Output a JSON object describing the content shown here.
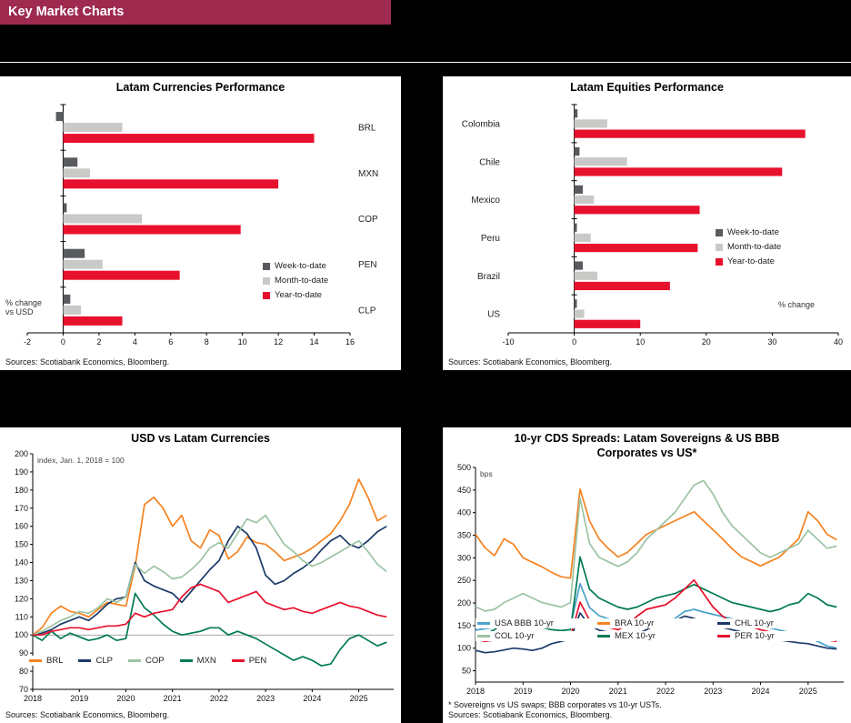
{
  "page": {
    "title": "Key Market Charts"
  },
  "colors": {
    "background": "#000000",
    "header_bg": "#9e2a4f",
    "panel_bg": "#ffffff",
    "week_to_date": "#595b5e",
    "month_to_date": "#c9cac8",
    "year_to_date": "#e8112d"
  },
  "chart_data": [
    {
      "type": "bar",
      "orientation": "horizontal",
      "title": "Latam Currencies Performance",
      "categories": [
        "BRL",
        "MXN",
        "COP",
        "PEN",
        "CLP"
      ],
      "series": [
        {
          "name": "Week-to-date",
          "color": "#595b5e",
          "values": [
            -0.4,
            0.8,
            0.2,
            1.2,
            0.4
          ]
        },
        {
          "name": "Month-to-date",
          "color": "#c9cac8",
          "values": [
            3.3,
            1.5,
            4.4,
            2.2,
            1.0
          ]
        },
        {
          "name": "Year-to-date",
          "color": "#e8112d",
          "values": [
            14.0,
            12.0,
            9.9,
            6.5,
            3.3
          ]
        }
      ],
      "xlim": [
        -2,
        16
      ],
      "xticks": [
        -2,
        0,
        2,
        4,
        6,
        8,
        10,
        12,
        14,
        16
      ],
      "axis_note": "% change\nvs USD",
      "legend_position": "inside-right",
      "sources": "Sources: Scotiabank Economics, Bloomberg."
    },
    {
      "type": "bar",
      "orientation": "horizontal",
      "title": "Latam Equities Performance",
      "categories": [
        "Colombia",
        "Chile",
        "Mexico",
        "Peru",
        "Brazil",
        "US"
      ],
      "series": [
        {
          "name": "Week-to-date",
          "color": "#595b5e",
          "values": [
            0.5,
            0.8,
            1.3,
            0.4,
            1.3,
            0.4
          ]
        },
        {
          "name": "Month-to-date",
          "color": "#c9cac8",
          "values": [
            5.0,
            8.0,
            3.0,
            2.5,
            3.5,
            1.5
          ]
        },
        {
          "name": "Year-to-date",
          "color": "#e8112d",
          "values": [
            35.0,
            31.5,
            19.0,
            18.7,
            14.5,
            10.0
          ]
        }
      ],
      "xlim": [
        -10,
        40
      ],
      "xticks": [
        -10,
        0,
        10,
        20,
        30,
        40
      ],
      "axis_note": "% change",
      "legend_position": "inside-right",
      "sources": "Sources: Scotiabank Economics, Bloomberg."
    },
    {
      "type": "line",
      "title": "USD vs Latam Currencies",
      "axis_note": "index, Jan. 1, 2018 = 100",
      "xlim": [
        2018,
        2025.75
      ],
      "ylim": [
        70,
        200
      ],
      "xticks": [
        2018,
        2019,
        2020,
        2021,
        2022,
        2023,
        2024,
        2025
      ],
      "yticks": [
        70,
        80,
        90,
        100,
        110,
        120,
        130,
        140,
        150,
        160,
        170,
        180,
        190,
        200
      ],
      "refline": 100,
      "x": [
        2018.0,
        2018.2,
        2018.4,
        2018.6,
        2018.8,
        2019.0,
        2019.2,
        2019.4,
        2019.6,
        2019.8,
        2020.0,
        2020.2,
        2020.4,
        2020.6,
        2020.8,
        2021.0,
        2021.2,
        2021.4,
        2021.6,
        2021.8,
        2022.0,
        2022.2,
        2022.4,
        2022.6,
        2022.8,
        2023.0,
        2023.2,
        2023.4,
        2023.6,
        2023.8,
        2024.0,
        2024.2,
        2024.4,
        2024.6,
        2024.8,
        2025.0,
        2025.2,
        2025.4,
        2025.6
      ],
      "series": [
        {
          "name": "BRL",
          "color": "#f58220",
          "values": [
            100,
            104,
            112,
            116,
            113,
            112,
            110,
            114,
            118,
            117,
            116,
            138,
            172,
            176,
            170,
            160,
            166,
            152,
            148,
            158,
            155,
            142,
            146,
            154,
            151,
            150,
            146,
            141,
            143,
            145,
            148,
            152,
            156,
            163,
            172,
            186,
            176,
            163,
            166
          ]
        },
        {
          "name": "CLP",
          "color": "#1b3968",
          "values": [
            100,
            101,
            103,
            106,
            108,
            110,
            108,
            112,
            117,
            120,
            121,
            140,
            130,
            127,
            125,
            123,
            118,
            124,
            130,
            136,
            141,
            152,
            160,
            156,
            148,
            133,
            128,
            130,
            134,
            137,
            141,
            147,
            152,
            155,
            150,
            148,
            152,
            157,
            160
          ]
        },
        {
          "name": "COP",
          "color": "#9cc3a3",
          "values": [
            100,
            102,
            105,
            108,
            110,
            113,
            112,
            115,
            120,
            118,
            121,
            139,
            134,
            138,
            135,
            131,
            132,
            136,
            141,
            148,
            151,
            148,
            156,
            164,
            162,
            166,
            158,
            150,
            146,
            141,
            138,
            140,
            143,
            146,
            149,
            152,
            146,
            139,
            135
          ]
        },
        {
          "name": "MXN",
          "color": "#007a53",
          "values": [
            100,
            97,
            102,
            98,
            101,
            99,
            97,
            98,
            100,
            97,
            98,
            123,
            115,
            111,
            106,
            102,
            100,
            101,
            102,
            104,
            104,
            100,
            102,
            100,
            98,
            95,
            92,
            89,
            86,
            88,
            86,
            83,
            84,
            92,
            98,
            100,
            97,
            94,
            96
          ]
        },
        {
          "name": "PEN",
          "color": "#e8112d",
          "values": [
            100,
            100,
            102,
            103,
            104,
            104,
            103,
            104,
            105,
            105,
            106,
            112,
            110,
            112,
            113,
            114,
            121,
            126,
            128,
            126,
            124,
            118,
            120,
            122,
            124,
            118,
            116,
            114,
            115,
            113,
            112,
            114,
            116,
            118,
            116,
            115,
            113,
            111,
            110
          ]
        }
      ],
      "sources": "Sources: Scotiabank Economics, Bloomberg."
    },
    {
      "type": "line",
      "title": "10-yr CDS Spreads: Latam Sovereigns & US BBB Corporates vs US*",
      "axis_note": "bps",
      "xlim": [
        2018,
        2025.75
      ],
      "ylim": [
        25,
        500
      ],
      "xticks": [
        2018,
        2019,
        2020,
        2021,
        2022,
        2023,
        2024,
        2025
      ],
      "yticks": [
        50,
        100,
        150,
        200,
        250,
        300,
        350,
        400,
        450,
        500
      ],
      "x": [
        2018.0,
        2018.2,
        2018.4,
        2018.6,
        2018.8,
        2019.0,
        2019.2,
        2019.4,
        2019.6,
        2019.8,
        2020.0,
        2020.2,
        2020.4,
        2020.6,
        2020.8,
        2021.0,
        2021.2,
        2021.4,
        2021.6,
        2021.8,
        2022.0,
        2022.2,
        2022.4,
        2022.6,
        2022.8,
        2023.0,
        2023.2,
        2023.4,
        2023.6,
        2023.8,
        2024.0,
        2024.2,
        2024.4,
        2024.6,
        2024.8,
        2025.0,
        2025.2,
        2025.4,
        2025.6
      ],
      "series": [
        {
          "name": "USA BBB 10-yr",
          "color": "#4ba3c9",
          "values": [
            140,
            143,
            146,
            151,
            156,
            165,
            160,
            155,
            150,
            148,
            150,
            243,
            190,
            172,
            165,
            160,
            155,
            150,
            148,
            151,
            156,
            166,
            181,
            186,
            180,
            175,
            170,
            165,
            160,
            157,
            150,
            145,
            140,
            135,
            130,
            125,
            115,
            105,
            100
          ]
        },
        {
          "name": "BRA 10-yr",
          "color": "#f58220",
          "values": [
            352,
            322,
            305,
            342,
            330,
            300,
            290,
            280,
            268,
            258,
            255,
            452,
            382,
            342,
            320,
            302,
            312,
            332,
            352,
            362,
            372,
            382,
            392,
            402,
            382,
            362,
            342,
            320,
            302,
            292,
            282,
            292,
            302,
            322,
            342,
            402,
            382,
            352,
            340
          ]
        },
        {
          "name": "CHL 10-yr",
          "color": "#1b3968",
          "values": [
            95,
            90,
            92,
            96,
            100,
            98,
            95,
            100,
            110,
            115,
            120,
            178,
            150,
            140,
            135,
            130,
            125,
            131,
            141,
            151,
            156,
            161,
            171,
            166,
            156,
            151,
            146,
            141,
            136,
            131,
            126,
            121,
            118,
            115,
            112,
            110,
            105,
            100,
            98
          ]
        },
        {
          "name": "COL 10-yr",
          "color": "#9cc3a3",
          "values": [
            192,
            182,
            186,
            201,
            211,
            221,
            211,
            201,
            196,
            191,
            201,
            432,
            332,
            301,
            291,
            281,
            291,
            311,
            341,
            361,
            381,
            401,
            431,
            461,
            471,
            441,
            401,
            371,
            351,
            331,
            311,
            301,
            311,
            321,
            331,
            361,
            341,
            321,
            326
          ]
        },
        {
          "name": "MEX 10-yr",
          "color": "#007a53",
          "values": [
            136,
            131,
            141,
            156,
            161,
            156,
            151,
            146,
            141,
            139,
            141,
            302,
            231,
            211,
            201,
            191,
            186,
            191,
            201,
            211,
            216,
            221,
            231,
            241,
            231,
            221,
            211,
            201,
            196,
            191,
            186,
            181,
            186,
            196,
            201,
            221,
            211,
            196,
            191
          ]
        },
        {
          "name": "PER 10-yr",
          "color": "#e8112d",
          "values": [
            120,
            115,
            118,
            125,
            130,
            128,
            125,
            122,
            120,
            118,
            125,
            202,
            162,
            151,
            146,
            141,
            151,
            171,
            186,
            191,
            196,
            211,
            231,
            251,
            221,
            191,
            171,
            156,
            151,
            148,
            141,
            136,
            131,
            128,
            125,
            131,
            126,
            118,
            115
          ]
        }
      ],
      "footnote": "* Sovereigns vs US swaps; BBB corporates vs 10-yr USTs.",
      "sources": "Sources: Scotiabank Economics, Bloomberg."
    }
  ]
}
